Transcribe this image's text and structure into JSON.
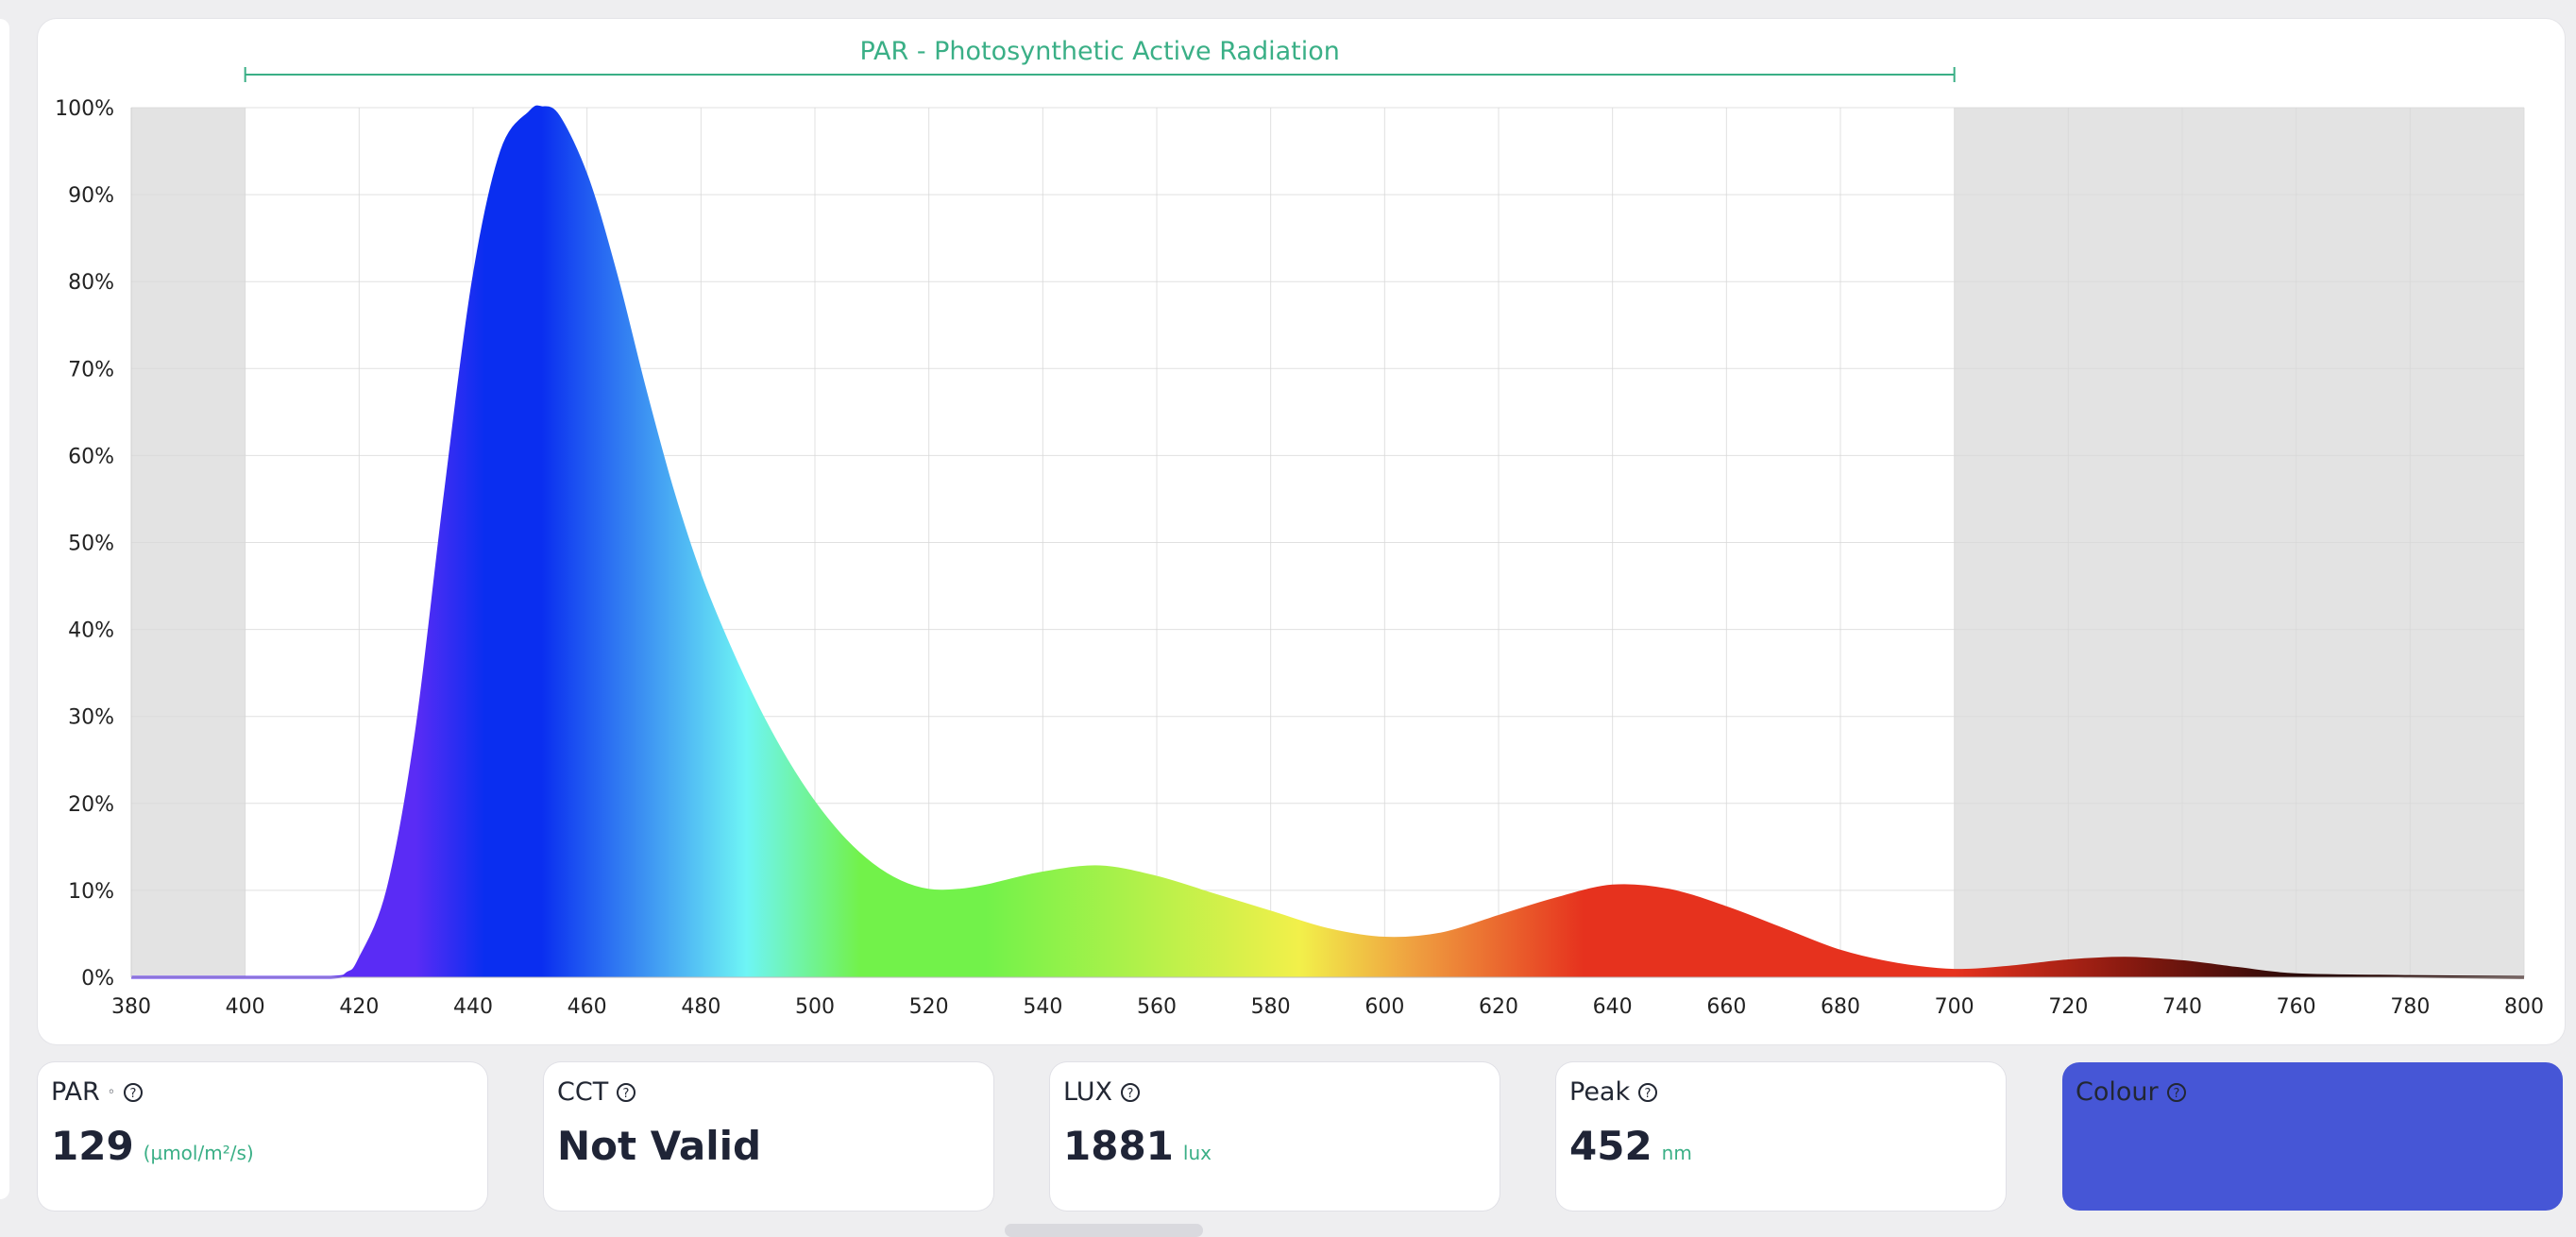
{
  "chart_data": {
    "type": "area",
    "xlabel": "",
    "ylabel": "",
    "xlim": [
      380,
      800
    ],
    "ylim": [
      0,
      100
    ],
    "x_ticks": [
      380,
      400,
      420,
      440,
      460,
      480,
      500,
      520,
      540,
      560,
      580,
      600,
      620,
      640,
      660,
      680,
      700,
      720,
      740,
      760,
      780,
      800
    ],
    "y_ticks": [
      0,
      10,
      20,
      30,
      40,
      50,
      60,
      70,
      80,
      90,
      100
    ],
    "y_tick_labels": [
      "0%",
      "10%",
      "20%",
      "30%",
      "40%",
      "50%",
      "60%",
      "70%",
      "80%",
      "90%",
      "100%"
    ],
    "grid": true,
    "highlight_band": {
      "label": "PAR - Photosynthetic Active Radiation",
      "from": 400,
      "to": 700
    },
    "shaded_regions": [
      [
        380,
        400
      ],
      [
        700,
        800
      ]
    ],
    "series": [
      {
        "x": [
          380,
          400,
          415,
          418,
          420,
          425,
          430,
          435,
          440,
          445,
          450,
          452,
          455,
          460,
          465,
          470,
          475,
          480,
          485,
          490,
          495,
          500,
          505,
          510,
          515,
          520,
          525,
          530,
          540,
          550,
          560,
          570,
          580,
          590,
          600,
          610,
          620,
          630,
          640,
          650,
          660,
          670,
          680,
          690,
          700,
          710,
          720,
          730,
          740,
          750,
          760,
          780,
          800
        ],
        "y": [
          0,
          0,
          0,
          0.5,
          2,
          10,
          28,
          55,
          80,
          95,
          99.5,
          100,
          99,
          92,
          81,
          68,
          56,
          46,
          38,
          31,
          25,
          20,
          16,
          13,
          11,
          10,
          10,
          10.5,
          12,
          12.7,
          11.5,
          9.5,
          7.5,
          5.5,
          4.5,
          5,
          7,
          9,
          10.5,
          10,
          8,
          5.5,
          3,
          1.5,
          0.8,
          1.2,
          1.9,
          2.2,
          1.8,
          1,
          0.3,
          0.1,
          0
        ]
      }
    ],
    "colors": {
      "violet": "#5a2cf5",
      "blue": "#0a2ef0",
      "cyan": "#6ef5f5",
      "green": "#72f24a",
      "yellow": "#f2f04a",
      "orange": "#efa040",
      "red": "#e6321e",
      "deep_red": "#8a1a10",
      "near_black": "#2a0a08",
      "shade": "#e3e3e3",
      "par_accent": "#3aaf86"
    }
  },
  "cards": {
    "par": {
      "title": "PAR",
      "value": "129",
      "unit": "(µmol/m²/s)"
    },
    "cct": {
      "title": "CCT",
      "value": "Not Valid"
    },
    "lux": {
      "title": "LUX",
      "value": "1881",
      "unit": "lux"
    },
    "peak": {
      "title": "Peak",
      "value": "452",
      "unit": "nm"
    },
    "colour": {
      "title": "Colour",
      "color": "#4656d6"
    }
  },
  "icons": {
    "help": "question-circle-icon",
    "dot": "small-circle-icon"
  }
}
